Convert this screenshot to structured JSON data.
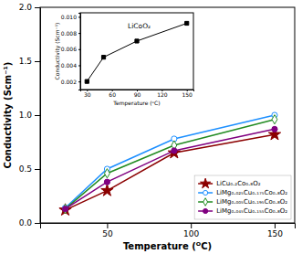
{
  "chart_data": [
    {
      "type": "line",
      "x": [
        25,
        50,
        90,
        150
      ],
      "series": [
        {
          "name": "LiCu₀.₂Co₀.₈O₂",
          "color": "#8B0000",
          "marker": "star",
          "values": [
            0.12,
            0.3,
            0.65,
            0.82
          ]
        },
        {
          "name": "LiMg₀.₀₂₅Cu₀.₁₇₅Co₀.₈O₂",
          "color": "#1E90FF",
          "marker": "circle-open",
          "values": [
            0.14,
            0.5,
            0.78,
            1.0
          ]
        },
        {
          "name": "LiMg₀.₀₀₅Cu₀.₁₉₅Co₀.₈O₂",
          "color": "#228B22",
          "marker": "diamond-open",
          "values": [
            0.13,
            0.46,
            0.72,
            0.96
          ]
        },
        {
          "name": "LiMg₀.₀₄₅Cu₀.₁₅₅Co₀.₈O₂",
          "color": "#800080",
          "marker": "circle",
          "values": [
            0.13,
            0.38,
            0.67,
            0.87
          ]
        }
      ],
      "xlabel": "Temperature (ᴼC)",
      "ylabel": "Conductivity (Scm⁻¹)",
      "xlim": [
        10,
        162
      ],
      "ylim": [
        0,
        2.0
      ],
      "xticks": [
        50,
        100,
        150
      ],
      "yticks": [
        {
          "value": 0,
          "label": "0.0"
        },
        0.5,
        {
          "value": 1,
          "label": "1.0"
        },
        1.5,
        {
          "value": 2,
          "label": "2.0"
        }
      ],
      "legend": "lower-right",
      "grid": false
    },
    {
      "type": "line",
      "x": [
        30,
        50,
        90,
        150
      ],
      "values": [
        0.002,
        0.005,
        0.007,
        0.0092
      ],
      "color": "black",
      "marker": "square",
      "xlabel": "Temperature (ᵒC)",
      "ylabel": "Conductivity (Scm⁻¹)",
      "xlim": [
        22,
        158
      ],
      "ylim": [
        0.001,
        0.0105
      ],
      "xticks": [
        30,
        60,
        90,
        120,
        150
      ],
      "yticks": [
        0.002,
        0.004,
        0.006,
        0.008,
        {
          "value": 0.01,
          "label": "0.010"
        }
      ],
      "annotations": [
        "LiCoO₂"
      ],
      "grid": false
    }
  ]
}
